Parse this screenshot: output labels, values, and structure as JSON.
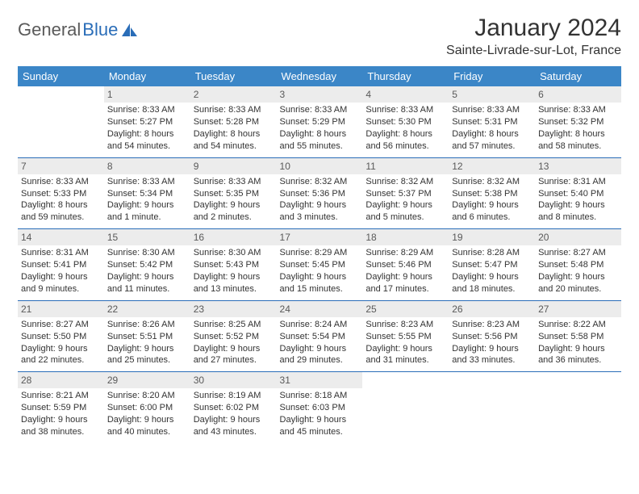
{
  "logo": {
    "text1": "General",
    "text2": "Blue"
  },
  "title": "January 2024",
  "location": "Sainte-Livrade-sur-Lot, France",
  "colors": {
    "header_bg": "#3b86c7",
    "header_text": "#ffffff",
    "daynum_bg": "#ececec",
    "daynum_text": "#595959",
    "rule": "#2a6db8",
    "logo_gray": "#5a5a5a",
    "logo_blue": "#2a6db8"
  },
  "weekdays": [
    "Sunday",
    "Monday",
    "Tuesday",
    "Wednesday",
    "Thursday",
    "Friday",
    "Saturday"
  ],
  "weeks": [
    [
      {
        "empty": true
      },
      {
        "day": "1",
        "sunrise": "Sunrise: 8:33 AM",
        "sunset": "Sunset: 5:27 PM",
        "daylight": "Daylight: 8 hours and 54 minutes."
      },
      {
        "day": "2",
        "sunrise": "Sunrise: 8:33 AM",
        "sunset": "Sunset: 5:28 PM",
        "daylight": "Daylight: 8 hours and 54 minutes."
      },
      {
        "day": "3",
        "sunrise": "Sunrise: 8:33 AM",
        "sunset": "Sunset: 5:29 PM",
        "daylight": "Daylight: 8 hours and 55 minutes."
      },
      {
        "day": "4",
        "sunrise": "Sunrise: 8:33 AM",
        "sunset": "Sunset: 5:30 PM",
        "daylight": "Daylight: 8 hours and 56 minutes."
      },
      {
        "day": "5",
        "sunrise": "Sunrise: 8:33 AM",
        "sunset": "Sunset: 5:31 PM",
        "daylight": "Daylight: 8 hours and 57 minutes."
      },
      {
        "day": "6",
        "sunrise": "Sunrise: 8:33 AM",
        "sunset": "Sunset: 5:32 PM",
        "daylight": "Daylight: 8 hours and 58 minutes."
      }
    ],
    [
      {
        "day": "7",
        "sunrise": "Sunrise: 8:33 AM",
        "sunset": "Sunset: 5:33 PM",
        "daylight": "Daylight: 8 hours and 59 minutes."
      },
      {
        "day": "8",
        "sunrise": "Sunrise: 8:33 AM",
        "sunset": "Sunset: 5:34 PM",
        "daylight": "Daylight: 9 hours and 1 minute."
      },
      {
        "day": "9",
        "sunrise": "Sunrise: 8:33 AM",
        "sunset": "Sunset: 5:35 PM",
        "daylight": "Daylight: 9 hours and 2 minutes."
      },
      {
        "day": "10",
        "sunrise": "Sunrise: 8:32 AM",
        "sunset": "Sunset: 5:36 PM",
        "daylight": "Daylight: 9 hours and 3 minutes."
      },
      {
        "day": "11",
        "sunrise": "Sunrise: 8:32 AM",
        "sunset": "Sunset: 5:37 PM",
        "daylight": "Daylight: 9 hours and 5 minutes."
      },
      {
        "day": "12",
        "sunrise": "Sunrise: 8:32 AM",
        "sunset": "Sunset: 5:38 PM",
        "daylight": "Daylight: 9 hours and 6 minutes."
      },
      {
        "day": "13",
        "sunrise": "Sunrise: 8:31 AM",
        "sunset": "Sunset: 5:40 PM",
        "daylight": "Daylight: 9 hours and 8 minutes."
      }
    ],
    [
      {
        "day": "14",
        "sunrise": "Sunrise: 8:31 AM",
        "sunset": "Sunset: 5:41 PM",
        "daylight": "Daylight: 9 hours and 9 minutes."
      },
      {
        "day": "15",
        "sunrise": "Sunrise: 8:30 AM",
        "sunset": "Sunset: 5:42 PM",
        "daylight": "Daylight: 9 hours and 11 minutes."
      },
      {
        "day": "16",
        "sunrise": "Sunrise: 8:30 AM",
        "sunset": "Sunset: 5:43 PM",
        "daylight": "Daylight: 9 hours and 13 minutes."
      },
      {
        "day": "17",
        "sunrise": "Sunrise: 8:29 AM",
        "sunset": "Sunset: 5:45 PM",
        "daylight": "Daylight: 9 hours and 15 minutes."
      },
      {
        "day": "18",
        "sunrise": "Sunrise: 8:29 AM",
        "sunset": "Sunset: 5:46 PM",
        "daylight": "Daylight: 9 hours and 17 minutes."
      },
      {
        "day": "19",
        "sunrise": "Sunrise: 8:28 AM",
        "sunset": "Sunset: 5:47 PM",
        "daylight": "Daylight: 9 hours and 18 minutes."
      },
      {
        "day": "20",
        "sunrise": "Sunrise: 8:27 AM",
        "sunset": "Sunset: 5:48 PM",
        "daylight": "Daylight: 9 hours and 20 minutes."
      }
    ],
    [
      {
        "day": "21",
        "sunrise": "Sunrise: 8:27 AM",
        "sunset": "Sunset: 5:50 PM",
        "daylight": "Daylight: 9 hours and 22 minutes."
      },
      {
        "day": "22",
        "sunrise": "Sunrise: 8:26 AM",
        "sunset": "Sunset: 5:51 PM",
        "daylight": "Daylight: 9 hours and 25 minutes."
      },
      {
        "day": "23",
        "sunrise": "Sunrise: 8:25 AM",
        "sunset": "Sunset: 5:52 PM",
        "daylight": "Daylight: 9 hours and 27 minutes."
      },
      {
        "day": "24",
        "sunrise": "Sunrise: 8:24 AM",
        "sunset": "Sunset: 5:54 PM",
        "daylight": "Daylight: 9 hours and 29 minutes."
      },
      {
        "day": "25",
        "sunrise": "Sunrise: 8:23 AM",
        "sunset": "Sunset: 5:55 PM",
        "daylight": "Daylight: 9 hours and 31 minutes."
      },
      {
        "day": "26",
        "sunrise": "Sunrise: 8:23 AM",
        "sunset": "Sunset: 5:56 PM",
        "daylight": "Daylight: 9 hours and 33 minutes."
      },
      {
        "day": "27",
        "sunrise": "Sunrise: 8:22 AM",
        "sunset": "Sunset: 5:58 PM",
        "daylight": "Daylight: 9 hours and 36 minutes."
      }
    ],
    [
      {
        "day": "28",
        "sunrise": "Sunrise: 8:21 AM",
        "sunset": "Sunset: 5:59 PM",
        "daylight": "Daylight: 9 hours and 38 minutes."
      },
      {
        "day": "29",
        "sunrise": "Sunrise: 8:20 AM",
        "sunset": "Sunset: 6:00 PM",
        "daylight": "Daylight: 9 hours and 40 minutes."
      },
      {
        "day": "30",
        "sunrise": "Sunrise: 8:19 AM",
        "sunset": "Sunset: 6:02 PM",
        "daylight": "Daylight: 9 hours and 43 minutes."
      },
      {
        "day": "31",
        "sunrise": "Sunrise: 8:18 AM",
        "sunset": "Sunset: 6:03 PM",
        "daylight": "Daylight: 9 hours and 45 minutes."
      },
      {
        "empty": true
      },
      {
        "empty": true
      },
      {
        "empty": true
      }
    ]
  ]
}
